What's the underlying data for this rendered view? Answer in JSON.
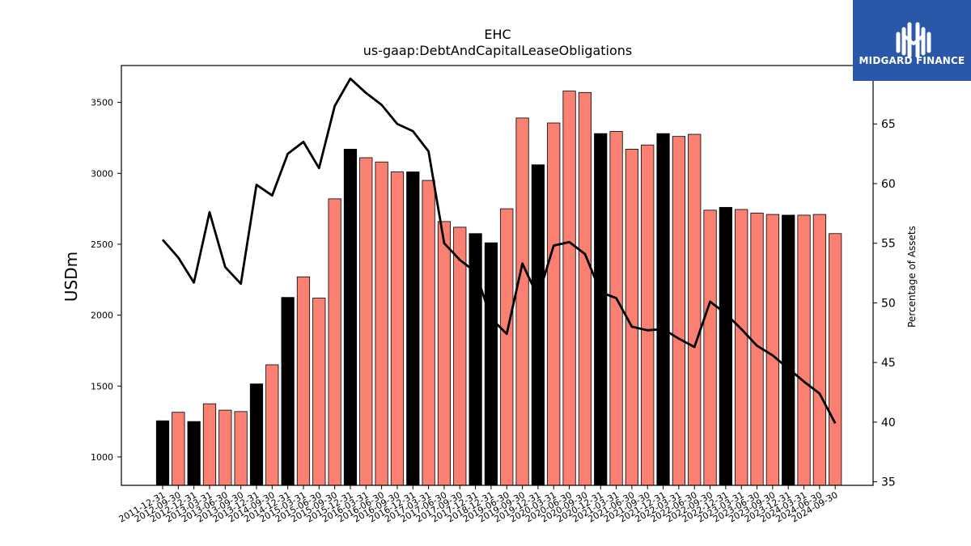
{
  "logo": {
    "text": "MIDGARD FINANCE"
  },
  "chart_data": {
    "type": "bar",
    "title": "EHC",
    "subtitle": "us-gaap:DebtAndCapitalLeaseObligations",
    "ylabel": "USDm",
    "y2label": "Percentage of Assets",
    "ylim": [
      800,
      3760
    ],
    "y2lim": [
      34.7,
      69.9
    ],
    "yticks": [
      1000,
      1500,
      2000,
      2500,
      3000,
      3500
    ],
    "y2ticks": [
      35,
      40,
      45,
      50,
      55,
      60,
      65
    ],
    "colors": {
      "q4_bar": "#000000",
      "other_bar": "#fa8072",
      "line": "#000000"
    },
    "categories": [
      "2011-12-31",
      "2012-09-30",
      "2012-12-31",
      "2013-03-31",
      "2013-06-30",
      "2013-09-30",
      "2013-12-31",
      "2014-09-30",
      "2014-12-31",
      "2015-03-31",
      "2015-06-30",
      "2015-09-30",
      "2015-12-31",
      "2016-03-31",
      "2016-06-30",
      "2016-09-30",
      "2016-12-31",
      "2017-03-31",
      "2017-06-30",
      "2017-09-30",
      "2017-12-31",
      "2018-12-31",
      "2019-06-30",
      "2019-09-30",
      "2019-12-31",
      "2020-03-31",
      "2020-06-30",
      "2020-09-30",
      "2020-12-31",
      "2021-03-31",
      "2021-06-30",
      "2021-09-30",
      "2021-12-31",
      "2022-03-31",
      "2022-06-30",
      "2022-09-30",
      "2022-12-31",
      "2023-03-31",
      "2023-06-30",
      "2023-09-30",
      "2023-12-31",
      "2024-03-31",
      "2024-06-30",
      "2024-09-30"
    ],
    "series": [
      {
        "type": "bar",
        "values": [
          1255,
          1315,
          1250,
          1375,
          1330,
          1320,
          1515,
          1650,
          2125,
          2270,
          2120,
          2820,
          3170,
          3110,
          3080,
          3010,
          3010,
          2950,
          2660,
          2620,
          2575,
          2510,
          2750,
          3390,
          3060,
          3355,
          3580,
          3570,
          3280,
          3295,
          3170,
          3200,
          3280,
          3260,
          3275,
          2740,
          2760,
          2745,
          2720,
          2710,
          2705,
          2705,
          2710,
          2575
        ],
        "highlight": [
          true,
          false,
          true,
          false,
          false,
          false,
          true,
          false,
          true,
          false,
          false,
          false,
          true,
          false,
          false,
          false,
          true,
          false,
          false,
          false,
          true,
          true,
          false,
          false,
          true,
          false,
          false,
          false,
          true,
          false,
          false,
          false,
          true,
          false,
          false,
          false,
          true,
          false,
          false,
          false,
          true,
          false,
          false,
          false
        ]
      },
      {
        "type": "line",
        "axis": "right",
        "values": [
          55.3,
          53.8,
          51.7,
          57.6,
          53.0,
          51.6,
          59.9,
          59.0,
          62.5,
          63.5,
          61.3,
          66.5,
          68.8,
          67.6,
          66.6,
          65.0,
          64.4,
          62.7,
          55.0,
          53.6,
          52.6,
          48.7,
          47.4,
          53.3,
          50.5,
          54.8,
          55.1,
          54.1,
          50.9,
          50.4,
          48.0,
          47.7,
          47.8,
          47.0,
          46.3,
          50.1,
          49.1,
          47.8,
          46.4,
          45.6,
          44.5,
          43.4,
          42.4,
          39.9
        ]
      }
    ]
  }
}
